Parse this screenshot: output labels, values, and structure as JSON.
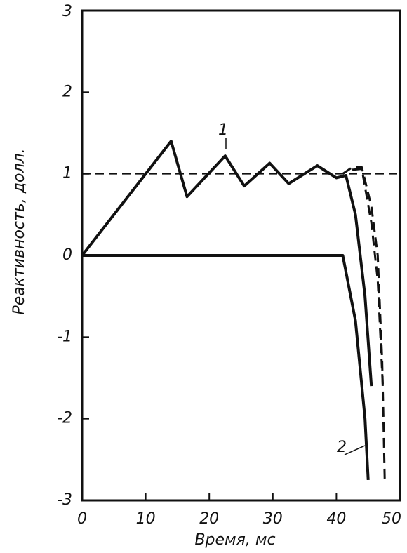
{
  "chart_data": {
    "type": "line",
    "x_label": "Время, мс",
    "y_label": "Реактивность, долл.",
    "xlim": [
      0,
      50
    ],
    "xticks": [
      0,
      10,
      20,
      30,
      40,
      50
    ],
    "ylim": [
      -3,
      3
    ],
    "yticks": [
      -3,
      -2,
      -1,
      0,
      1,
      2,
      3
    ],
    "reference_line": 1,
    "annotations": [
      "1",
      "2"
    ],
    "series": [
      {
        "color": "#111111",
        "style": "solid",
        "width": 4,
        "x": [
          0,
          14,
          16.5,
          22.5,
          25.5,
          29.5,
          32.5,
          37,
          40,
          41.5,
          43,
          44.5,
          45.5
        ],
        "values": [
          0,
          1.4,
          0.72,
          1.22,
          0.85,
          1.13,
          0.88,
          1.1,
          0.95,
          0.98,
          0.5,
          -0.5,
          -1.6
        ]
      },
      {
        "color": "#111111",
        "style": "solid",
        "width": 4,
        "x": [
          0,
          41,
          43,
          44.5,
          45
        ],
        "values": [
          0,
          0,
          -0.8,
          -2,
          -2.75
        ]
      },
      {
        "color": "#111111",
        "style": "dashed",
        "width": 3,
        "x": [
          41,
          42.5,
          44,
          45.5,
          46.5,
          47.2,
          47.6
        ],
        "values": [
          1.0,
          1.08,
          1.08,
          0.6,
          0,
          -1.3,
          -2.75
        ]
      },
      {
        "color": "#111111",
        "style": "dashed",
        "width": 3,
        "x": [
          42.5,
          44,
          45.5,
          46.5,
          47.3
        ],
        "values": [
          1.05,
          1.06,
          0.4,
          -0.3,
          -1.6
        ]
      }
    ]
  }
}
